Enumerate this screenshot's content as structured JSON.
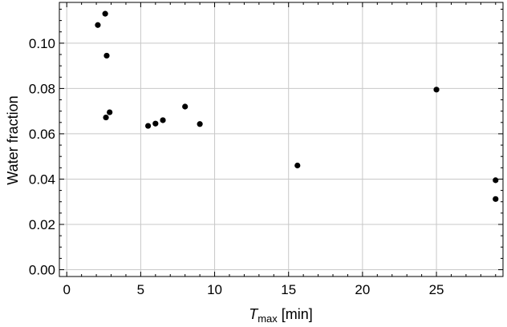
{
  "chart_data": {
    "type": "scatter",
    "title": "",
    "xlabel": {
      "main": "T",
      "sub": "max",
      "unit": " [min]"
    },
    "ylabel": "Water fraction",
    "xlim": [
      -0.5,
      29.5
    ],
    "ylim": [
      -0.003,
      0.118
    ],
    "grid": true,
    "xticks": [
      0,
      5,
      10,
      15,
      20,
      25
    ],
    "xtick_labels": [
      "0",
      "5",
      "10",
      "15",
      "20",
      "25"
    ],
    "yticks": [
      0.0,
      0.02,
      0.04,
      0.06,
      0.08,
      0.1
    ],
    "ytick_labels": [
      "0.00",
      "0.02",
      "0.04",
      "0.06",
      "0.08",
      "0.10"
    ],
    "points": [
      {
        "x": 2.1,
        "y": 0.108
      },
      {
        "x": 2.6,
        "y": 0.113
      },
      {
        "x": 2.7,
        "y": 0.0945
      },
      {
        "x": 2.65,
        "y": 0.0672
      },
      {
        "x": 2.9,
        "y": 0.0695
      },
      {
        "x": 5.5,
        "y": 0.0635
      },
      {
        "x": 6.0,
        "y": 0.0645
      },
      {
        "x": 6.5,
        "y": 0.066
      },
      {
        "x": 8.0,
        "y": 0.072
      },
      {
        "x": 9.0,
        "y": 0.0643
      },
      {
        "x": 15.6,
        "y": 0.046
      },
      {
        "x": 25.0,
        "y": 0.0795
      },
      {
        "x": 29.0,
        "y": 0.0395
      },
      {
        "x": 29.0,
        "y": 0.0312
      }
    ],
    "color": "#000000",
    "grid_color": "#c8c8c8"
  }
}
